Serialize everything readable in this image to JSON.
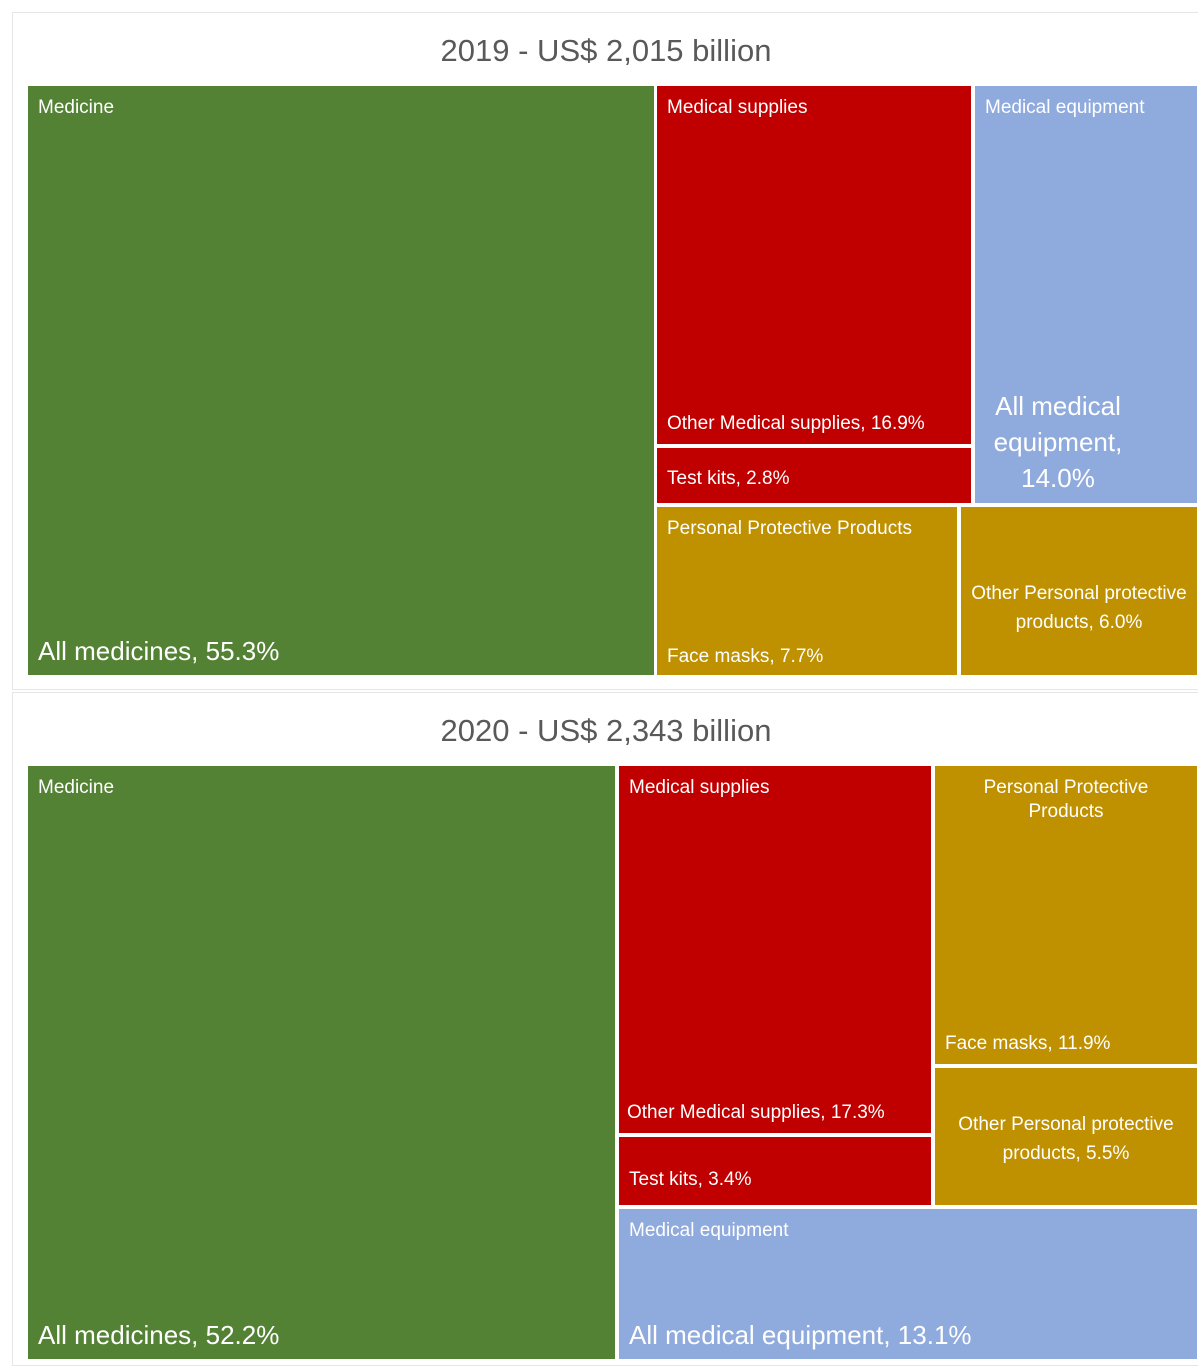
{
  "colors": {
    "medicine": "#548235",
    "medical_supplies": "#c00000",
    "medical_equipment": "#8faadc",
    "personal_protective_products": "#bf9000",
    "title_text": "#595959"
  },
  "chart_data": [
    {
      "type": "treemap",
      "title": "2019 - US$ 2,015 billion",
      "groups": [
        {
          "name": "Medicine",
          "items": [
            {
              "label": "All medicines, 55.3%",
              "value": 55.3
            }
          ]
        },
        {
          "name": "Medical supplies",
          "items": [
            {
              "label": "Other Medical supplies, 16.9%",
              "value": 16.9
            },
            {
              "label": "Test kits, 2.8%",
              "value": 2.8
            }
          ]
        },
        {
          "name": "Medical equipment",
          "items": [
            {
              "label": "All medical equipment, 14.0%",
              "value": 14.0
            }
          ]
        },
        {
          "name": "Personal Protective Products",
          "items": [
            {
              "label": "Face masks, 7.7%",
              "value": 7.7
            },
            {
              "label": "Other Personal protective products, 6.0%",
              "value": 6.0
            }
          ]
        }
      ]
    },
    {
      "type": "treemap",
      "title": "2020 - US$ 2,343 billion",
      "groups": [
        {
          "name": "Medicine",
          "items": [
            {
              "label": "All medicines, 52.2%",
              "value": 52.2
            }
          ]
        },
        {
          "name": "Medical supplies",
          "items": [
            {
              "label": "Other Medical supplies, 17.3%",
              "value": 17.3
            },
            {
              "label": "Test kits, 3.4%",
              "value": 3.4
            }
          ]
        },
        {
          "name": "Personal Protective Products",
          "items": [
            {
              "label": "Face masks, 11.9%",
              "value": 11.9
            },
            {
              "label": "Other Personal protective products, 5.5%",
              "value": 5.5
            }
          ]
        },
        {
          "name": "Medical equipment",
          "items": [
            {
              "label": "All medical equipment, 13.1%",
              "value": 13.1
            }
          ]
        }
      ]
    }
  ]
}
